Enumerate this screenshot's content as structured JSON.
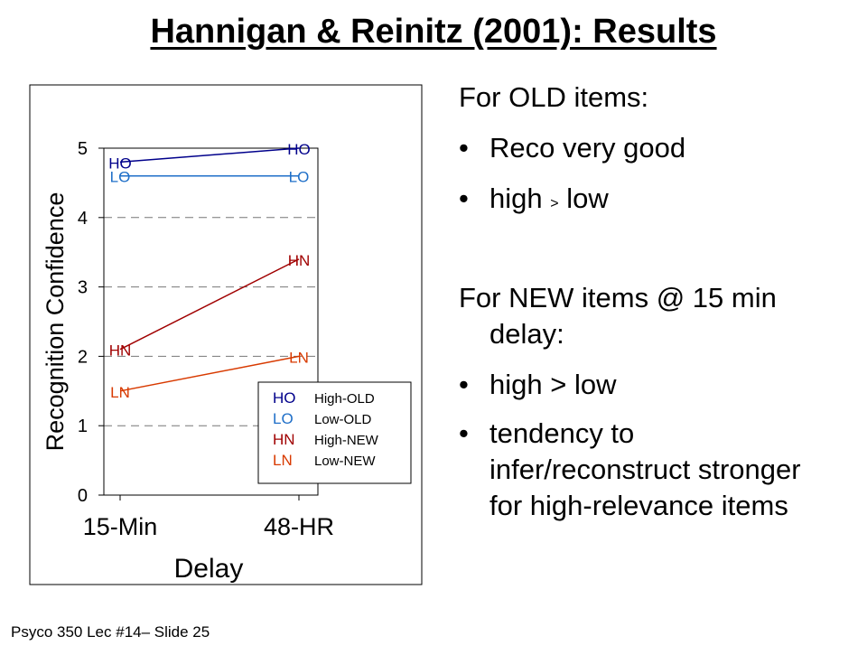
{
  "slide": {
    "title": "Hannigan & Reinitz (2001): Results",
    "footer": "Psyco 350 Lec #14– Slide 25"
  },
  "bullets": {
    "old_heading": "For OLD items:",
    "old_1": "Reco very good",
    "old_2_a": "high",
    "old_2_sym": ">",
    "old_2_b": "low",
    "new_heading_1": "For NEW items @ 15 min",
    "new_heading_2": "delay:",
    "new_1": "high > low",
    "new_2_1": "tendency to",
    "new_2_2": "infer/reconstruct stronger",
    "new_2_3": "for high-relevance items"
  },
  "chart_data": {
    "type": "line",
    "categories": [
      "15-Min",
      "48-HR"
    ],
    "xlabel": "Delay",
    "ylabel": "Recognition Confidence",
    "ylim": [
      0,
      5
    ],
    "yticks": [
      "0",
      "1",
      "2",
      "3",
      "4",
      "5"
    ],
    "grid": "dashed horizontal",
    "legend_position": "bottom-right",
    "series": [
      {
        "name": "High-OLD",
        "code": "HO",
        "values": [
          4.8,
          5.0
        ],
        "color": "#00008b"
      },
      {
        "name": "Low-OLD",
        "code": "LO",
        "values": [
          4.6,
          4.6
        ],
        "color": "#1f6fc8"
      },
      {
        "name": "High-NEW",
        "code": "HN",
        "values": [
          2.1,
          3.4
        ],
        "color": "#a00000"
      },
      {
        "name": "Low-NEW",
        "code": "LN",
        "values": [
          1.5,
          2.0
        ],
        "color": "#d83a00"
      }
    ]
  }
}
